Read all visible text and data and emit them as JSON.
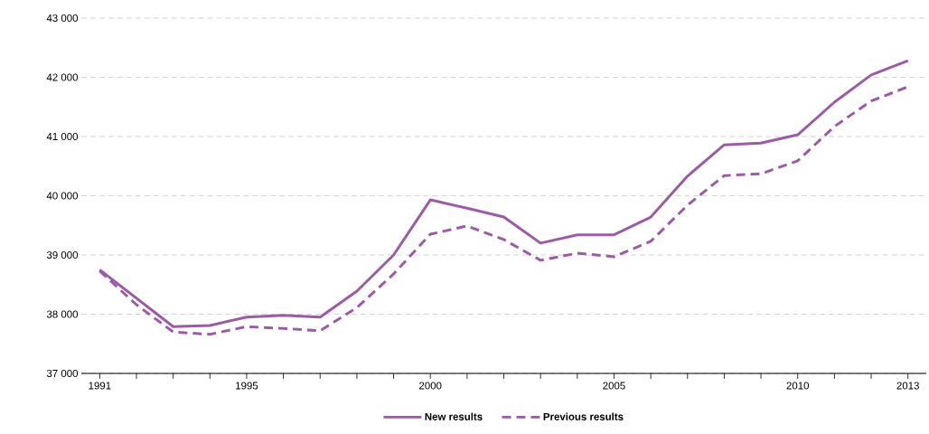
{
  "chart_data": {
    "type": "line",
    "x": [
      1991,
      1992,
      1993,
      1994,
      1995,
      1996,
      1997,
      1998,
      1999,
      2000,
      2001,
      2002,
      2003,
      2004,
      2005,
      2006,
      2007,
      2008,
      2009,
      2010,
      2011,
      2012,
      2013
    ],
    "series": [
      {
        "name": "New results",
        "color": "#9b5ba5",
        "line_style": "solid",
        "values": [
          38750,
          38270,
          37790,
          37810,
          37950,
          37980,
          37950,
          38390,
          39000,
          39930,
          39790,
          39640,
          39200,
          39340,
          39340,
          39640,
          40330,
          40860,
          40890,
          41030,
          41580,
          42040,
          42280
        ]
      },
      {
        "name": "Previous results",
        "color": "#9b5ba5",
        "line_style": "dashed",
        "values": [
          38730,
          38160,
          37700,
          37660,
          37790,
          37760,
          37720,
          38110,
          38680,
          39350,
          39490,
          39260,
          38910,
          39030,
          38970,
          39230,
          39840,
          40340,
          40370,
          40590,
          41170,
          41600,
          41840
        ]
      }
    ],
    "xlim": [
      1990.5,
      2013.5
    ],
    "xticks": [
      {
        "value": 1991,
        "label": "1991"
      },
      {
        "value": 1992,
        "label": null
      },
      {
        "value": 1993,
        "label": null
      },
      {
        "value": 1994,
        "label": null
      },
      {
        "value": 1995,
        "label": "1995"
      },
      {
        "value": 1996,
        "label": null
      },
      {
        "value": 1997,
        "label": null
      },
      {
        "value": 1998,
        "label": null
      },
      {
        "value": 1999,
        "label": null
      },
      {
        "value": 2000,
        "label": "2000"
      },
      {
        "value": 2001,
        "label": null
      },
      {
        "value": 2002,
        "label": null
      },
      {
        "value": 2003,
        "label": null
      },
      {
        "value": 2004,
        "label": null
      },
      {
        "value": 2005,
        "label": "2005"
      },
      {
        "value": 2006,
        "label": null
      },
      {
        "value": 2007,
        "label": null
      },
      {
        "value": 2008,
        "label": null
      },
      {
        "value": 2009,
        "label": null
      },
      {
        "value": 2010,
        "label": "2010"
      },
      {
        "value": 2011,
        "label": null
      },
      {
        "value": 2012,
        "label": null
      },
      {
        "value": 2013,
        "label": "2013"
      }
    ],
    "ylim": [
      37000,
      43000
    ],
    "yticks": [
      {
        "value": 37000,
        "label": "37 000"
      },
      {
        "value": 38000,
        "label": "38 000"
      },
      {
        "value": 39000,
        "label": "39 000"
      },
      {
        "value": 40000,
        "label": "40 000"
      },
      {
        "value": 41000,
        "label": "41 000"
      },
      {
        "value": 42000,
        "label": "42 000"
      },
      {
        "value": 43000,
        "label": "43 000"
      }
    ],
    "grid": "y",
    "legend": "bottom",
    "marker": "none"
  }
}
